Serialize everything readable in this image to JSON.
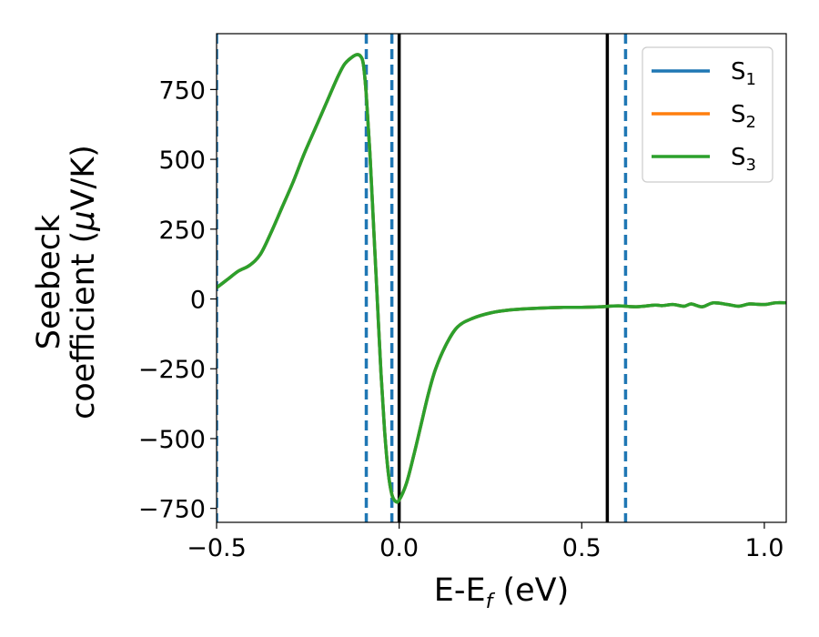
{
  "chart_data": {
    "type": "line",
    "xlabel": {
      "main": "E-E",
      "sub": "f",
      "unit": " (eV)"
    },
    "ylabel": {
      "line1": "Seebeck",
      "line2": "coefficient  (",
      "mu": "μ",
      "line2_end": "V/K)"
    },
    "xlim": [
      -0.5,
      1.06
    ],
    "ylim": [
      -800,
      950
    ],
    "x_ticks": [
      -0.5,
      0.0,
      0.5,
      1.0
    ],
    "x_tick_labels": [
      "−0.5",
      "0.0",
      "0.5",
      "1.0"
    ],
    "y_ticks": [
      -750,
      -500,
      -250,
      0,
      250,
      500,
      750
    ],
    "y_tick_labels": [
      "−750",
      "−500",
      "−250",
      "0",
      "250",
      "500",
      "750"
    ],
    "grid": false,
    "legend_position": "top-right",
    "series": [
      {
        "name": "S",
        "sub": "1",
        "color": "#1f77b4"
      },
      {
        "name": "S",
        "sub": "2",
        "color": "#ff7f0e"
      },
      {
        "name": "S",
        "sub": "3",
        "color": "#2ca02c"
      }
    ],
    "curve": {
      "x": [
        -0.5,
        -0.47,
        -0.44,
        -0.41,
        -0.38,
        -0.35,
        -0.32,
        -0.29,
        -0.26,
        -0.23,
        -0.2,
        -0.17,
        -0.15,
        -0.13,
        -0.115,
        -0.105,
        -0.098,
        -0.09,
        -0.08,
        -0.07,
        -0.06,
        -0.05,
        -0.04,
        -0.03,
        -0.02,
        -0.01,
        0.0,
        0.02,
        0.04,
        0.06,
        0.08,
        0.1,
        0.13,
        0.16,
        0.2,
        0.25,
        0.3,
        0.35,
        0.4,
        0.45,
        0.5,
        0.55,
        0.6,
        0.65,
        0.7,
        0.72,
        0.75,
        0.78,
        0.8,
        0.83,
        0.86,
        0.9,
        0.93,
        0.96,
        1.0,
        1.03,
        1.06
      ],
      "y": [
        40,
        70,
        100,
        120,
        160,
        240,
        330,
        420,
        520,
        610,
        700,
        790,
        840,
        865,
        875,
        868,
        840,
        730,
        520,
        260,
        0,
        -260,
        -470,
        -620,
        -700,
        -725,
        -720,
        -660,
        -560,
        -450,
        -340,
        -250,
        -160,
        -100,
        -70,
        -50,
        -40,
        -35,
        -32,
        -30,
        -30,
        -28,
        -25,
        -28,
        -22,
        -24,
        -20,
        -26,
        -18,
        -28,
        -14,
        -20,
        -26,
        -18,
        -20,
        -14,
        -14
      ]
    },
    "solid_vlines_x": [
      0.0,
      0.57
    ],
    "dashed_vlines_x": [
      -0.5,
      -0.09,
      -0.02,
      0.62
    ],
    "solid_vline_color": "#000000",
    "dashed_vline_color": "#1f77b4"
  }
}
